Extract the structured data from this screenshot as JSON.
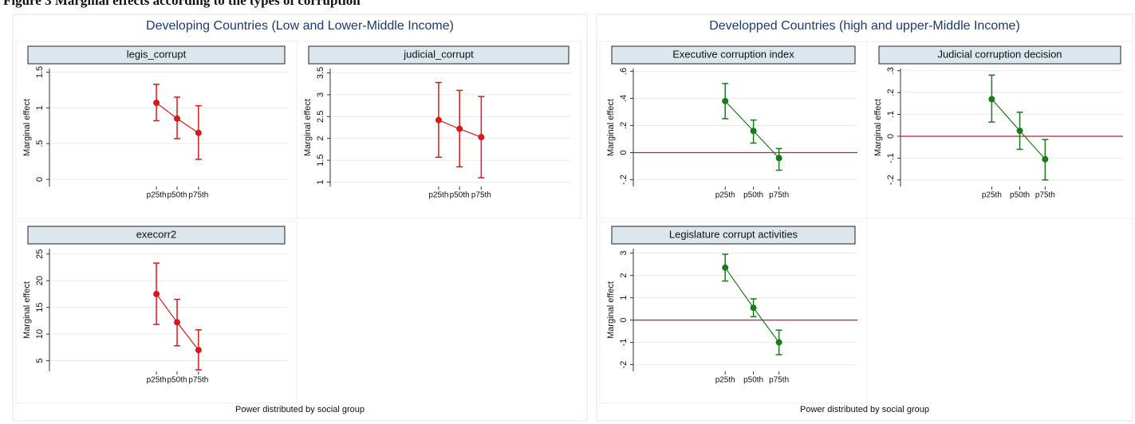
{
  "figure_title": "Figure 3 Marginal effects according to the types of corruption",
  "chart_data": [
    {
      "type": "errorbar",
      "title": "Developing Countries (Low and Lower-Middle Income)",
      "xlabel": "Power distributed by social group",
      "color": "#d7191c",
      "zero_line": false,
      "subplots": [
        {
          "title": "legis_corrupt",
          "ylabel": "Marginal effect",
          "categories": [
            "p25th",
            "p50th",
            "p75th"
          ],
          "values": [
            1.07,
            0.85,
            0.65
          ],
          "ci_low": [
            0.82,
            0.57,
            0.28
          ],
          "ci_high": [
            1.33,
            1.15,
            1.03
          ],
          "ylim": [
            -0.1,
            1.55
          ],
          "yticks": [
            0,
            {
              "value": 0.5,
              "label": ".5"
            },
            1,
            1.5
          ]
        },
        {
          "title": "judicial_corrupt",
          "ylabel": "Marginal effect",
          "categories": [
            "p25th",
            "p50th",
            "p75th"
          ],
          "values": [
            2.42,
            2.22,
            2.03
          ],
          "ci_low": [
            1.57,
            1.35,
            1.1
          ],
          "ci_high": [
            3.28,
            3.1,
            2.96
          ],
          "ylim": [
            0.9,
            3.6
          ],
          "yticks": [
            1,
            1.5,
            2,
            2.5,
            3,
            3.5
          ]
        },
        {
          "title": "execorr2",
          "ylabel": "Marginal effect",
          "categories": [
            "p25th",
            "p50th",
            "p75th"
          ],
          "values": [
            17.5,
            12.2,
            7
          ],
          "ci_low": [
            11.8,
            7.8,
            3.3
          ],
          "ci_high": [
            23.3,
            16.5,
            10.8
          ],
          "ylim": [
            3,
            26
          ],
          "yticks": [
            5,
            10,
            15,
            20,
            25
          ]
        }
      ]
    },
    {
      "type": "errorbar",
      "title": "Developped Countries (high and upper-Middle Income)",
      "xlabel": "Power distributed by social group",
      "color": "#1a7a1a",
      "zero_line": true,
      "zero_color": "#c8184a",
      "subplots": [
        {
          "title": "Executive corruption index",
          "ylabel": "Marginal effect",
          "categories": [
            "p25th",
            "p50th",
            "p75th"
          ],
          "values": [
            0.38,
            0.16,
            -0.04
          ],
          "ci_low": [
            0.25,
            0.07,
            -0.13
          ],
          "ci_high": [
            0.51,
            0.24,
            0.03
          ],
          "ylim": [
            -0.25,
            0.62
          ],
          "yticks": [
            {
              "value": -0.2,
              "label": "-.2"
            },
            0,
            {
              "value": 0.2,
              "label": ".2"
            },
            {
              "value": 0.4,
              "label": ".4"
            },
            {
              "value": 0.6,
              "label": ".6"
            }
          ]
        },
        {
          "title": "Judicial corruption decision",
          "ylabel": "Marginal effect",
          "categories": [
            "p25th",
            "p50th",
            "p75th"
          ],
          "values": [
            0.17,
            0.025,
            -0.105
          ],
          "ci_low": [
            0.065,
            -0.06,
            -0.2
          ],
          "ci_high": [
            0.28,
            0.11,
            -0.015
          ],
          "ylim": [
            -0.23,
            0.31
          ],
          "yticks": [
            {
              "value": -0.2,
              "label": "-.2"
            },
            {
              "value": -0.1,
              "label": "-.1"
            },
            0,
            {
              "value": 0.1,
              "label": ".1"
            },
            {
              "value": 0.2,
              "label": ".2"
            },
            {
              "value": 0.3,
              "label": ".3"
            }
          ]
        },
        {
          "title": "Legislature corrupt activities",
          "ylabel": "Marginal effect",
          "categories": [
            "p25th",
            "p50th",
            "p75th"
          ],
          "values": [
            2.35,
            0.55,
            -1.0
          ],
          "ci_low": [
            1.75,
            0.15,
            -1.55
          ],
          "ci_high": [
            2.95,
            0.95,
            -0.45
          ],
          "ylim": [
            -2.3,
            3.2
          ],
          "yticks": [
            -2,
            -1,
            0,
            1,
            2,
            3
          ]
        }
      ]
    }
  ]
}
